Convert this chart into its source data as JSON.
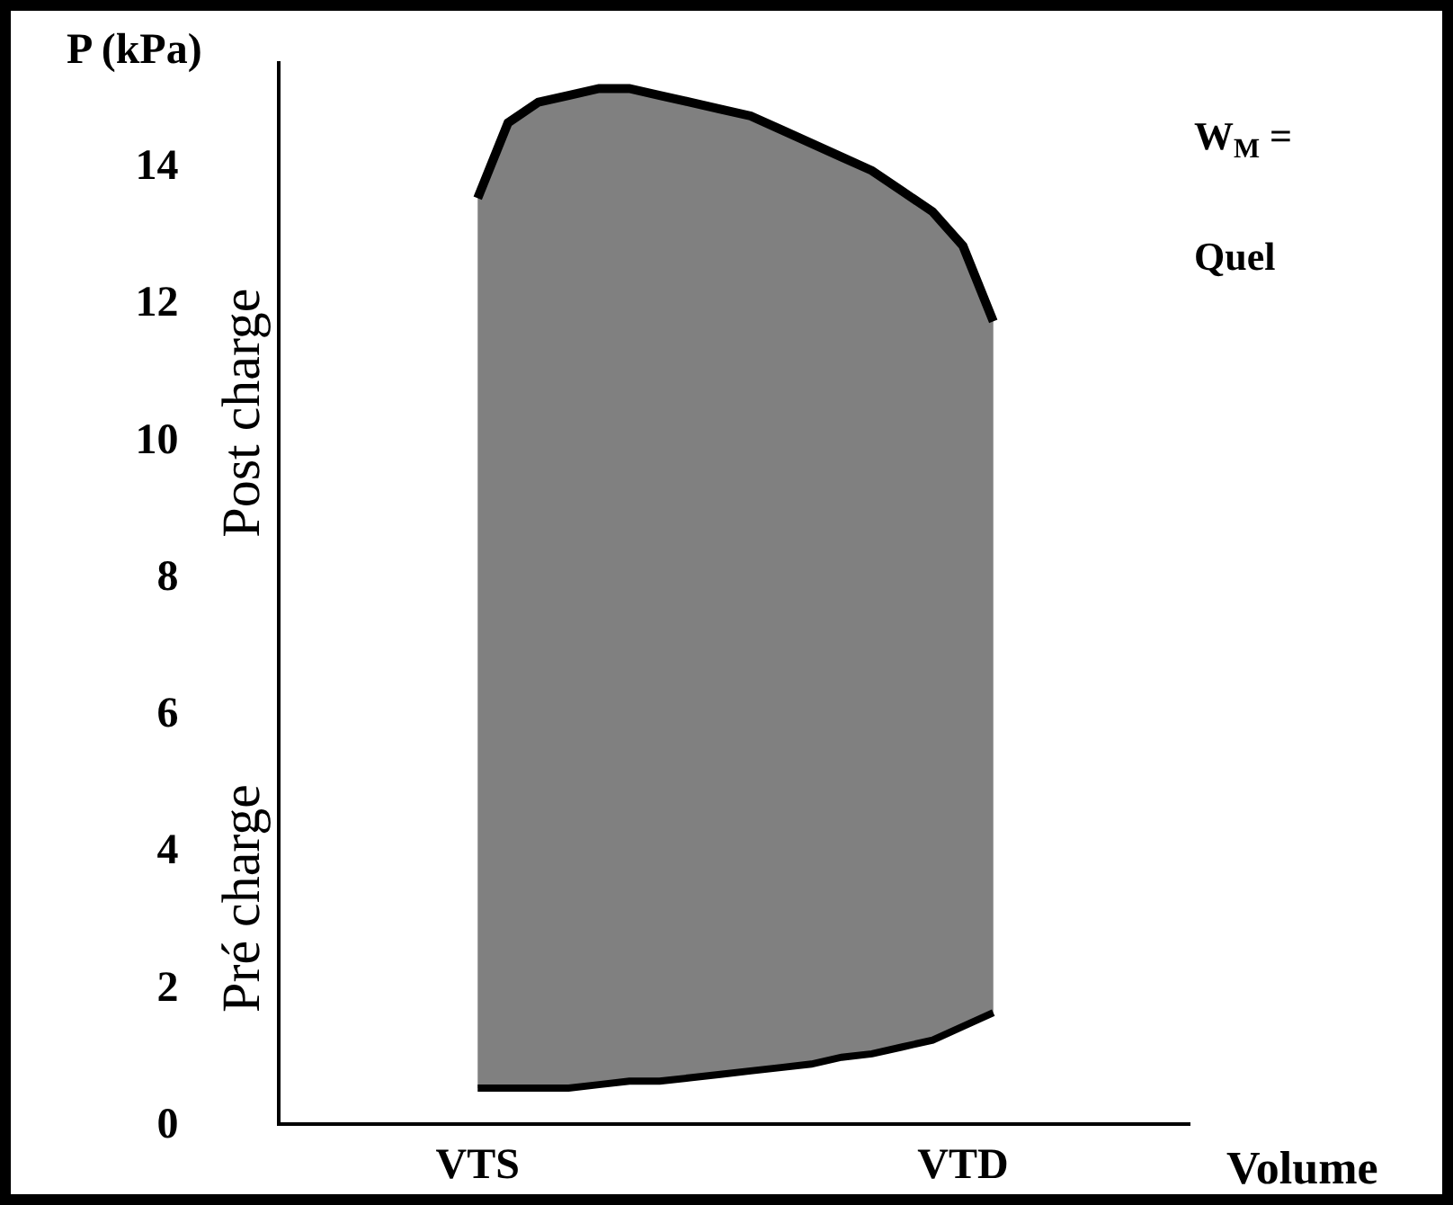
{
  "chart_data": {
    "type": "area",
    "xlabel": "Volume",
    "ylabel": "P (kPa)",
    "categories": [
      null,
      null,
      null,
      null,
      null,
      null,
      "VTS",
      null,
      null,
      null,
      null,
      null,
      null,
      null,
      null,
      null,
      null,
      null,
      null,
      null,
      null,
      null,
      "VTD",
      null,
      null,
      null,
      null,
      null,
      null,
      null
    ],
    "ylim": [
      0,
      15.5
    ],
    "yticks": [
      0,
      2,
      4,
      6,
      8,
      10,
      12,
      14
    ],
    "grid": false,
    "marker": "none",
    "annotations": [
      "Post charge",
      "Pré charge",
      "W$_{M}$ =",
      "Quel"
    ],
    "series": [
      {
        "type": "line",
        "color": "#000000",
        "values": [
          null,
          null,
          null,
          null,
          null,
          null,
          0.5,
          0.5,
          0.5,
          0.5,
          0.55,
          0.6,
          0.6,
          0.65,
          0.7,
          0.75,
          0.8,
          0.85,
          0.95,
          1.0,
          1.1,
          1.2,
          1.4,
          1.6,
          null,
          null,
          null,
          null,
          null,
          null
        ]
      },
      {
        "color": "#808080",
        "values": [
          null,
          null,
          null,
          null,
          null,
          null,
          13.5,
          14.6,
          14.9,
          15.0,
          15.1,
          15.1,
          15.0,
          14.9,
          14.8,
          14.7,
          14.5,
          14.3,
          14.1,
          13.9,
          13.6,
          13.3,
          12.8,
          11.7,
          null,
          null,
          null,
          null,
          null,
          null
        ]
      }
    ]
  }
}
